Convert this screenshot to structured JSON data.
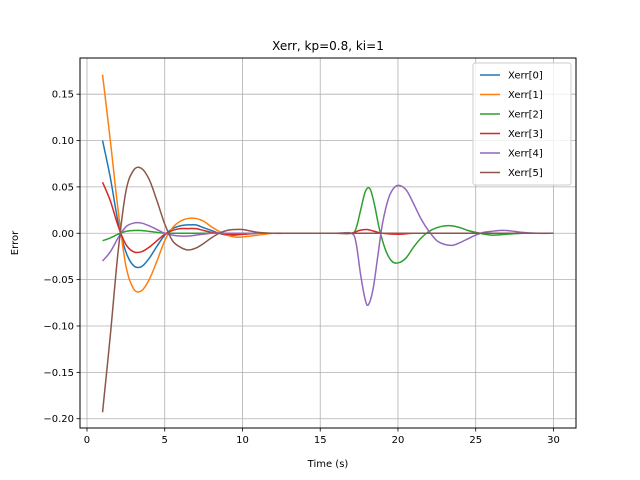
{
  "chart_data": {
    "type": "line",
    "title": "Xerr, kp=0.8, ki=1",
    "xlabel": "Time (s)",
    "ylabel": "Error",
    "xlim": [
      -0.45,
      31.45
    ],
    "ylim": [
      -0.21,
      0.189
    ],
    "xticks": [
      0,
      5,
      10,
      15,
      20,
      25,
      30
    ],
    "yticks": [
      -0.2,
      -0.15,
      -0.1,
      -0.05,
      0.0,
      0.05,
      0.1,
      0.15
    ],
    "xtick_labels": [
      "0",
      "5",
      "10",
      "15",
      "20",
      "25",
      "30"
    ],
    "ytick_labels": [
      "−0.20",
      "−0.15",
      "−0.10",
      "−0.05",
      "0.00",
      "0.05",
      "0.10",
      "0.15"
    ],
    "grid": true,
    "legend_position": "top-right",
    "series": [
      {
        "name": "Xerr[0]",
        "color": "#1f77b4",
        "x": [
          1,
          1.5,
          2,
          2.5,
          3,
          3.5,
          4,
          4.5,
          5,
          5.5,
          6,
          6.5,
          7,
          7.5,
          8,
          8.5,
          9,
          9.5,
          10,
          11,
          12,
          13,
          14,
          15,
          16,
          17,
          17.5,
          18,
          18.5,
          19,
          20,
          21,
          22,
          23,
          24,
          25,
          26,
          27,
          28,
          29,
          30
        ],
        "y": [
          0.1,
          0.06,
          0.012,
          -0.02,
          -0.035,
          -0.036,
          -0.027,
          -0.014,
          -0.002,
          0.005,
          0.008,
          0.009,
          0.009,
          0.006,
          0.003,
          0.0,
          -0.002,
          -0.002,
          -0.001,
          0.0,
          0.0,
          0.0,
          0.0,
          0.0,
          0.0,
          0.0,
          0.0,
          0.0,
          0.0,
          0.0,
          0.0,
          0.0,
          0.0,
          0.0,
          0.0,
          0.0,
          0.0,
          0.0,
          0.0,
          0.0,
          0.0
        ]
      },
      {
        "name": "Xerr[1]",
        "color": "#ff7f0e",
        "x": [
          1,
          1.5,
          2,
          2.5,
          3,
          3.5,
          4,
          4.5,
          5,
          5.5,
          6,
          6.5,
          7,
          7.5,
          8,
          8.5,
          9,
          9.5,
          10,
          11,
          12,
          13,
          14,
          15,
          16,
          17,
          17.5,
          18,
          18.5,
          19,
          20,
          21,
          22,
          23,
          24,
          25,
          26,
          27,
          28,
          29,
          30
        ],
        "y": [
          0.171,
          0.1,
          0.025,
          -0.035,
          -0.06,
          -0.062,
          -0.05,
          -0.03,
          -0.008,
          0.006,
          0.013,
          0.016,
          0.016,
          0.013,
          0.007,
          0.002,
          -0.002,
          -0.004,
          -0.004,
          -0.002,
          0.0,
          0.0,
          0.0,
          0.0,
          0.0,
          0.0,
          0.0,
          0.0,
          0.0,
          0.0,
          0.0,
          0.0,
          0.0,
          0.0,
          0.0,
          0.0,
          0.0,
          0.0,
          0.0,
          0.0,
          0.0
        ]
      },
      {
        "name": "Xerr[2]",
        "color": "#2ca02c",
        "x": [
          1,
          1.5,
          2,
          2.5,
          3,
          3.5,
          4,
          4.5,
          5,
          5.5,
          6,
          7,
          8,
          9,
          10,
          12,
          14,
          16,
          17,
          17.3,
          17.6,
          17.9,
          18.2,
          18.5,
          18.8,
          19.2,
          19.6,
          20,
          20.5,
          21,
          21.5,
          22,
          22.5,
          23,
          23.5,
          24,
          24.5,
          25,
          26,
          27,
          28,
          29,
          30
        ],
        "y": [
          -0.008,
          -0.005,
          -0.001,
          0.002,
          0.003,
          0.003,
          0.002,
          0.001,
          0.0,
          0.0,
          0.0,
          0.0,
          0.0,
          0.0,
          0.0,
          0.0,
          0.0,
          0.0,
          0.0,
          0.005,
          0.025,
          0.045,
          0.048,
          0.03,
          0.005,
          -0.018,
          -0.03,
          -0.032,
          -0.027,
          -0.015,
          -0.005,
          0.002,
          0.006,
          0.008,
          0.008,
          0.006,
          0.003,
          0.001,
          -0.002,
          -0.001,
          0.0,
          0.0,
          0.0
        ]
      },
      {
        "name": "Xerr[3]",
        "color": "#d62728",
        "x": [
          1,
          1.5,
          2,
          2.5,
          3,
          3.5,
          4,
          4.5,
          5,
          5.5,
          6,
          6.5,
          7,
          7.5,
          8,
          8.5,
          9,
          10,
          11,
          12,
          14,
          16,
          17,
          17.5,
          18,
          18.5,
          19,
          20,
          21,
          22,
          24,
          26,
          28,
          30
        ],
        "y": [
          0.055,
          0.035,
          0.008,
          -0.012,
          -0.02,
          -0.02,
          -0.015,
          -0.008,
          -0.001,
          0.003,
          0.005,
          0.005,
          0.005,
          0.003,
          0.001,
          0.0,
          -0.001,
          -0.001,
          0.0,
          0.0,
          0.0,
          0.0,
          0.0,
          0.003,
          0.004,
          0.002,
          0.0,
          -0.001,
          0.0,
          0.0,
          0.0,
          0.0,
          0.0,
          0.0
        ]
      },
      {
        "name": "Xerr[4]",
        "color": "#9467bd",
        "x": [
          1,
          1.5,
          2,
          2.5,
          3,
          3.5,
          4,
          4.5,
          5,
          5.5,
          6,
          6.5,
          7,
          7.5,
          8,
          9,
          10,
          11,
          12,
          14,
          16,
          17,
          17.3,
          17.6,
          17.9,
          18.1,
          18.4,
          18.7,
          19,
          19.4,
          19.8,
          20.2,
          20.6,
          21,
          21.5,
          22,
          22.5,
          23,
          23.5,
          24,
          24.5,
          25,
          25.5,
          26,
          26.5,
          27,
          27.5,
          28,
          29,
          30
        ],
        "y": [
          -0.03,
          -0.02,
          -0.005,
          0.007,
          0.011,
          0.011,
          0.008,
          0.004,
          0.0,
          -0.002,
          -0.003,
          -0.003,
          -0.002,
          -0.001,
          0.0,
          0.0,
          0.0,
          0.0,
          0.0,
          0.0,
          0.0,
          0.0,
          -0.01,
          -0.045,
          -0.072,
          -0.077,
          -0.06,
          -0.025,
          0.01,
          0.038,
          0.05,
          0.051,
          0.045,
          0.032,
          0.015,
          0.002,
          -0.008,
          -0.012,
          -0.013,
          -0.01,
          -0.006,
          -0.002,
          0.001,
          0.002,
          0.003,
          0.003,
          0.002,
          0.001,
          0.0,
          0.0
        ]
      },
      {
        "name": "Xerr[5]",
        "color": "#8c564b",
        "x": [
          1,
          1.5,
          2,
          2.5,
          3,
          3.5,
          4,
          4.5,
          5,
          5.5,
          6,
          6.5,
          7,
          7.5,
          8,
          8.5,
          9,
          9.5,
          10,
          11,
          12,
          13,
          14,
          16,
          18,
          20,
          22,
          24,
          26,
          28,
          30
        ],
        "y": [
          -0.193,
          -0.11,
          -0.02,
          0.045,
          0.068,
          0.07,
          0.058,
          0.035,
          0.01,
          -0.008,
          -0.015,
          -0.018,
          -0.016,
          -0.011,
          -0.005,
          0.0,
          0.003,
          0.004,
          0.004,
          0.001,
          0.0,
          0.0,
          0.0,
          0.0,
          0.0,
          0.0,
          0.0,
          0.0,
          0.0,
          0.0,
          0.0
        ]
      }
    ]
  }
}
